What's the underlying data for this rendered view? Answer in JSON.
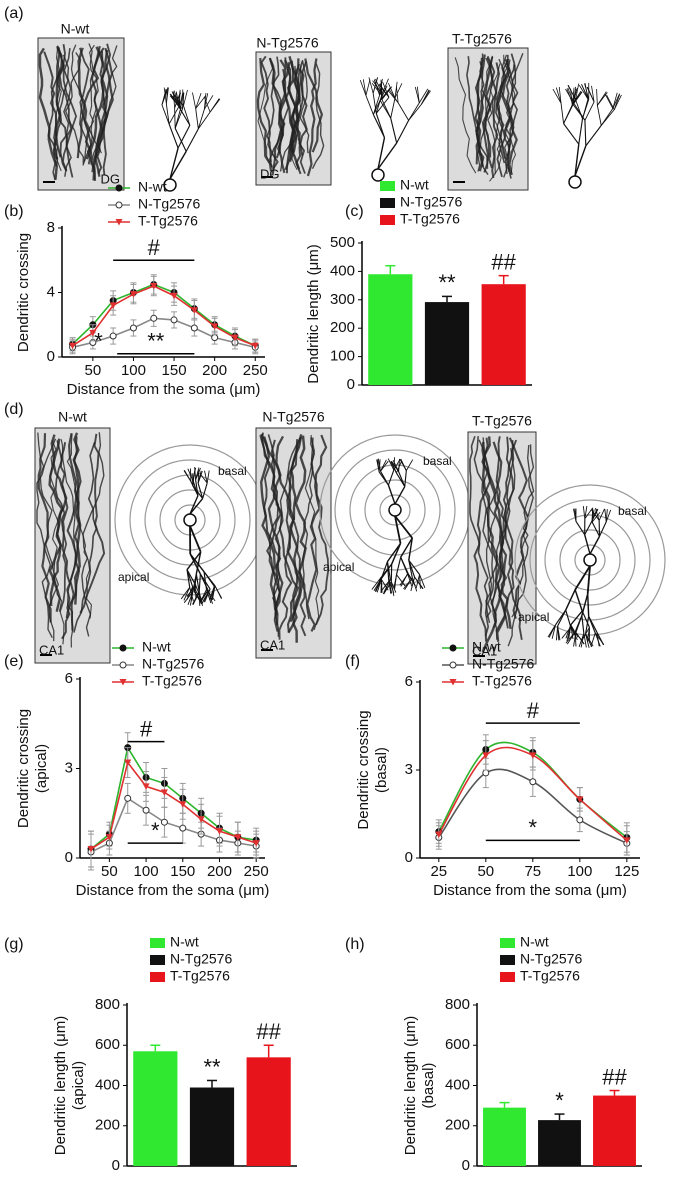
{
  "figures": [
    {
      "label": "(a)",
      "items": [
        {
          "title": "N-wt",
          "region": "DG"
        },
        {
          "title": "N-Tg2576",
          "region": "DG"
        },
        {
          "title": "T-Tg2576"
        }
      ]
    },
    {
      "label": "(d)",
      "items": [
        {
          "title": "N-wt",
          "region": "CA1",
          "labels": [
            "basal",
            "apical"
          ]
        },
        {
          "title": "N-Tg2576",
          "region": "CA1",
          "labels": [
            "basal",
            "apical"
          ]
        },
        {
          "title": "T-Tg2576",
          "region": "CA1",
          "labels": [
            "basal",
            "apical"
          ]
        }
      ]
    }
  ],
  "chart_data": [
    {
      "type": "line",
      "label": "(b)",
      "xlabel": "Distance from the soma (μm)",
      "ylabel": [
        "Dendritic crossing"
      ],
      "x": [
        25,
        50,
        75,
        100,
        125,
        150,
        175,
        200,
        225,
        250
      ],
      "xlim": [
        12,
        262
      ],
      "xticks": [
        50,
        100,
        150,
        200,
        250
      ],
      "ylim": [
        0,
        8
      ],
      "yticks": [
        0,
        4,
        8
      ],
      "series": [
        {
          "name": "N-wt",
          "color": "#2cb52c",
          "marker": "circle",
          "values": [
            0.8,
            2.0,
            3.5,
            4.0,
            4.5,
            4.0,
            3.0,
            2.0,
            1.3,
            0.7
          ],
          "errors": [
            0.4,
            0.5,
            0.6,
            0.6,
            0.6,
            0.6,
            0.6,
            0.5,
            0.5,
            0.4
          ]
        },
        {
          "name": "N-Tg2576",
          "color": "#888888",
          "marker": "open-circle",
          "values": [
            0.6,
            0.9,
            1.3,
            1.8,
            2.4,
            2.3,
            1.8,
            1.2,
            0.9,
            0.6
          ],
          "errors": [
            0.4,
            0.4,
            0.5,
            0.5,
            0.5,
            0.5,
            0.5,
            0.4,
            0.4,
            0.4
          ]
        },
        {
          "name": "T-Tg2576",
          "color": "#e03030",
          "marker": "triangle",
          "values": [
            0.7,
            1.5,
            3.2,
            3.9,
            4.4,
            3.8,
            2.9,
            1.9,
            1.2,
            0.7
          ],
          "errors": [
            0.4,
            0.5,
            0.6,
            0.6,
            0.6,
            0.6,
            0.6,
            0.5,
            0.5,
            0.4
          ]
        }
      ],
      "annotations": [
        {
          "text": "#",
          "x": [
            75,
            175
          ],
          "y": 6
        },
        {
          "text": "*",
          "x": [
            57
          ],
          "y": 0.9
        },
        {
          "text": "**",
          "x": [
            80,
            175
          ],
          "y": 0.2
        }
      ]
    },
    {
      "type": "bar",
      "label": "(c)",
      "ylabel": [
        "Dendritic length (μm)"
      ],
      "categories": [
        "N-wt",
        "N-Tg2576",
        "T-Tg2576"
      ],
      "colors": [
        "#2fe82f",
        "#111111",
        "#e8141b"
      ],
      "values": [
        390,
        292,
        355
      ],
      "errors": [
        30,
        20,
        30
      ],
      "sig": [
        null,
        "**",
        "##"
      ],
      "ylim": [
        0,
        500
      ],
      "yticks": [
        0,
        100,
        200,
        300,
        400,
        500
      ]
    },
    {
      "type": "line",
      "label": "(e)",
      "xlabel": "Distance from the soma (μm)",
      "ylabel": [
        "Dendritic crossing",
        "(apical)"
      ],
      "x": [
        25,
        50,
        75,
        100,
        125,
        150,
        175,
        200,
        225,
        250
      ],
      "xlim": [
        10,
        262
      ],
      "xticks": [
        50,
        100,
        150,
        200,
        250
      ],
      "ylim": [
        0,
        6
      ],
      "yticks": [
        0,
        3,
        6
      ],
      "series": [
        {
          "name": "N-wt",
          "color": "#2cb52c",
          "marker": "circle",
          "values": [
            0.3,
            0.8,
            3.7,
            2.7,
            2.5,
            2.0,
            1.5,
            1.0,
            0.7,
            0.6
          ],
          "errors": [
            0.6,
            0.4,
            0.5,
            0.5,
            0.5,
            0.5,
            0.5,
            0.5,
            0.5,
            0.4
          ]
        },
        {
          "name": "N-Tg2576",
          "color": "#888888",
          "marker": "open-circle",
          "values": [
            0.2,
            0.5,
            2.0,
            1.6,
            1.2,
            1.0,
            0.8,
            0.6,
            0.5,
            0.4
          ],
          "errors": [
            0.6,
            0.4,
            0.5,
            0.5,
            0.5,
            0.5,
            0.4,
            0.4,
            0.4,
            0.4
          ]
        },
        {
          "name": "T-Tg2576",
          "color": "#e03030",
          "marker": "triangle",
          "values": [
            0.3,
            0.7,
            3.2,
            2.4,
            2.2,
            1.8,
            1.3,
            0.9,
            0.7,
            0.5
          ],
          "errors": [
            0.6,
            0.4,
            0.5,
            0.5,
            0.5,
            0.5,
            0.5,
            0.5,
            0.5,
            0.4
          ]
        }
      ],
      "annotations": [
        {
          "text": "#",
          "x": [
            75,
            125
          ],
          "y": 3.9
        },
        {
          "text": "*",
          "x": [
            75,
            150
          ],
          "y": 0.5
        }
      ]
    },
    {
      "type": "line",
      "label": "(f)",
      "smooth": true,
      "xlabel": "Distance from the soma (μm)",
      "ylabel": [
        "Dendritic crossing",
        "(basal)"
      ],
      "x": [
        25,
        50,
        75,
        100,
        125
      ],
      "xlim": [
        15,
        132
      ],
      "xticks": [
        25,
        50,
        75,
        100,
        125
      ],
      "ylim": [
        0,
        6
      ],
      "yticks": [
        0,
        3,
        6
      ],
      "series": [
        {
          "name": "N-wt",
          "color": "#2cb52c",
          "marker": "circle",
          "values": [
            0.9,
            3.7,
            3.6,
            2.0,
            0.7
          ],
          "errors": [
            0.4,
            0.5,
            0.5,
            0.4,
            0.5
          ]
        },
        {
          "name": "N-Tg2576",
          "color": "#555555",
          "marker": "open-circle",
          "values": [
            0.7,
            2.9,
            2.6,
            1.3,
            0.5
          ],
          "errors": [
            0.4,
            0.5,
            0.5,
            0.4,
            0.4
          ]
        },
        {
          "name": "T-Tg2576",
          "color": "#e03030",
          "marker": "triangle",
          "values": [
            0.8,
            3.5,
            3.5,
            2.0,
            0.6
          ],
          "errors": [
            0.4,
            0.5,
            0.5,
            0.4,
            0.5
          ]
        }
      ],
      "annotations": [
        {
          "text": "#",
          "x": [
            50,
            100
          ],
          "y": 4.6
        },
        {
          "text": "*",
          "x": [
            50,
            100
          ],
          "y": 0.6
        }
      ]
    },
    {
      "type": "bar",
      "label": "(g)",
      "ylabel": [
        "Dendritic length (μm)",
        "(apical)"
      ],
      "categories": [
        "N-wt",
        "N-Tg2576",
        "T-Tg2576"
      ],
      "colors": [
        "#2fe82f",
        "#111111",
        "#e8141b"
      ],
      "values": [
        570,
        390,
        540
      ],
      "errors": [
        30,
        35,
        60
      ],
      "sig": [
        null,
        "**",
        "##"
      ],
      "ylim": [
        0,
        800
      ],
      "yticks": [
        0,
        200,
        400,
        600,
        800
      ]
    },
    {
      "type": "bar",
      "label": "(h)",
      "ylabel": [
        "Dendritic length (μm)",
        "(basal)"
      ],
      "categories": [
        "N-wt",
        "N-Tg2576",
        "T-Tg2576"
      ],
      "colors": [
        "#2fe82f",
        "#111111",
        "#e8141b"
      ],
      "values": [
        290,
        228,
        350
      ],
      "errors": [
        25,
        30,
        25
      ],
      "sig": [
        null,
        "*",
        "##"
      ],
      "ylim": [
        0,
        800
      ],
      "yticks": [
        0,
        200,
        400,
        600,
        800
      ]
    }
  ]
}
